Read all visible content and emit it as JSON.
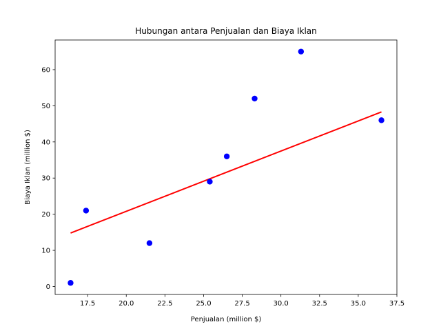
{
  "chart_data": {
    "type": "scatter",
    "title": "Hubungan antara Penjualan dan Biaya Iklan",
    "xlabel": "Penjualan (million $)",
    "ylabel": "Biaya Iklan (million $)",
    "xlim": [
      15.4,
      37.5
    ],
    "ylim": [
      -2.2,
      68.2
    ],
    "xticks": [
      17.5,
      20.0,
      22.5,
      25.0,
      27.5,
      30.0,
      32.5,
      35.0,
      37.5
    ],
    "xtick_labels": [
      "17.5",
      "20.0",
      "22.5",
      "25.0",
      "27.5",
      "30.0",
      "32.5",
      "35.0",
      "37.5"
    ],
    "yticks": [
      0,
      10,
      20,
      30,
      40,
      50,
      60
    ],
    "ytick_labels": [
      "0",
      "10",
      "20",
      "30",
      "40",
      "50",
      "60"
    ],
    "grid": false,
    "series": [
      {
        "kind": "points",
        "color": "#0000ff",
        "x": [
          16.4,
          17.4,
          21.5,
          25.4,
          26.5,
          28.3,
          31.3,
          36.5
        ],
        "y": [
          1,
          21,
          12,
          29,
          36,
          52,
          65,
          46
        ]
      },
      {
        "kind": "fit-line",
        "color": "#ff0000",
        "x": [
          16.4,
          36.5
        ],
        "y": [
          14.8,
          48.3
        ]
      }
    ]
  }
}
